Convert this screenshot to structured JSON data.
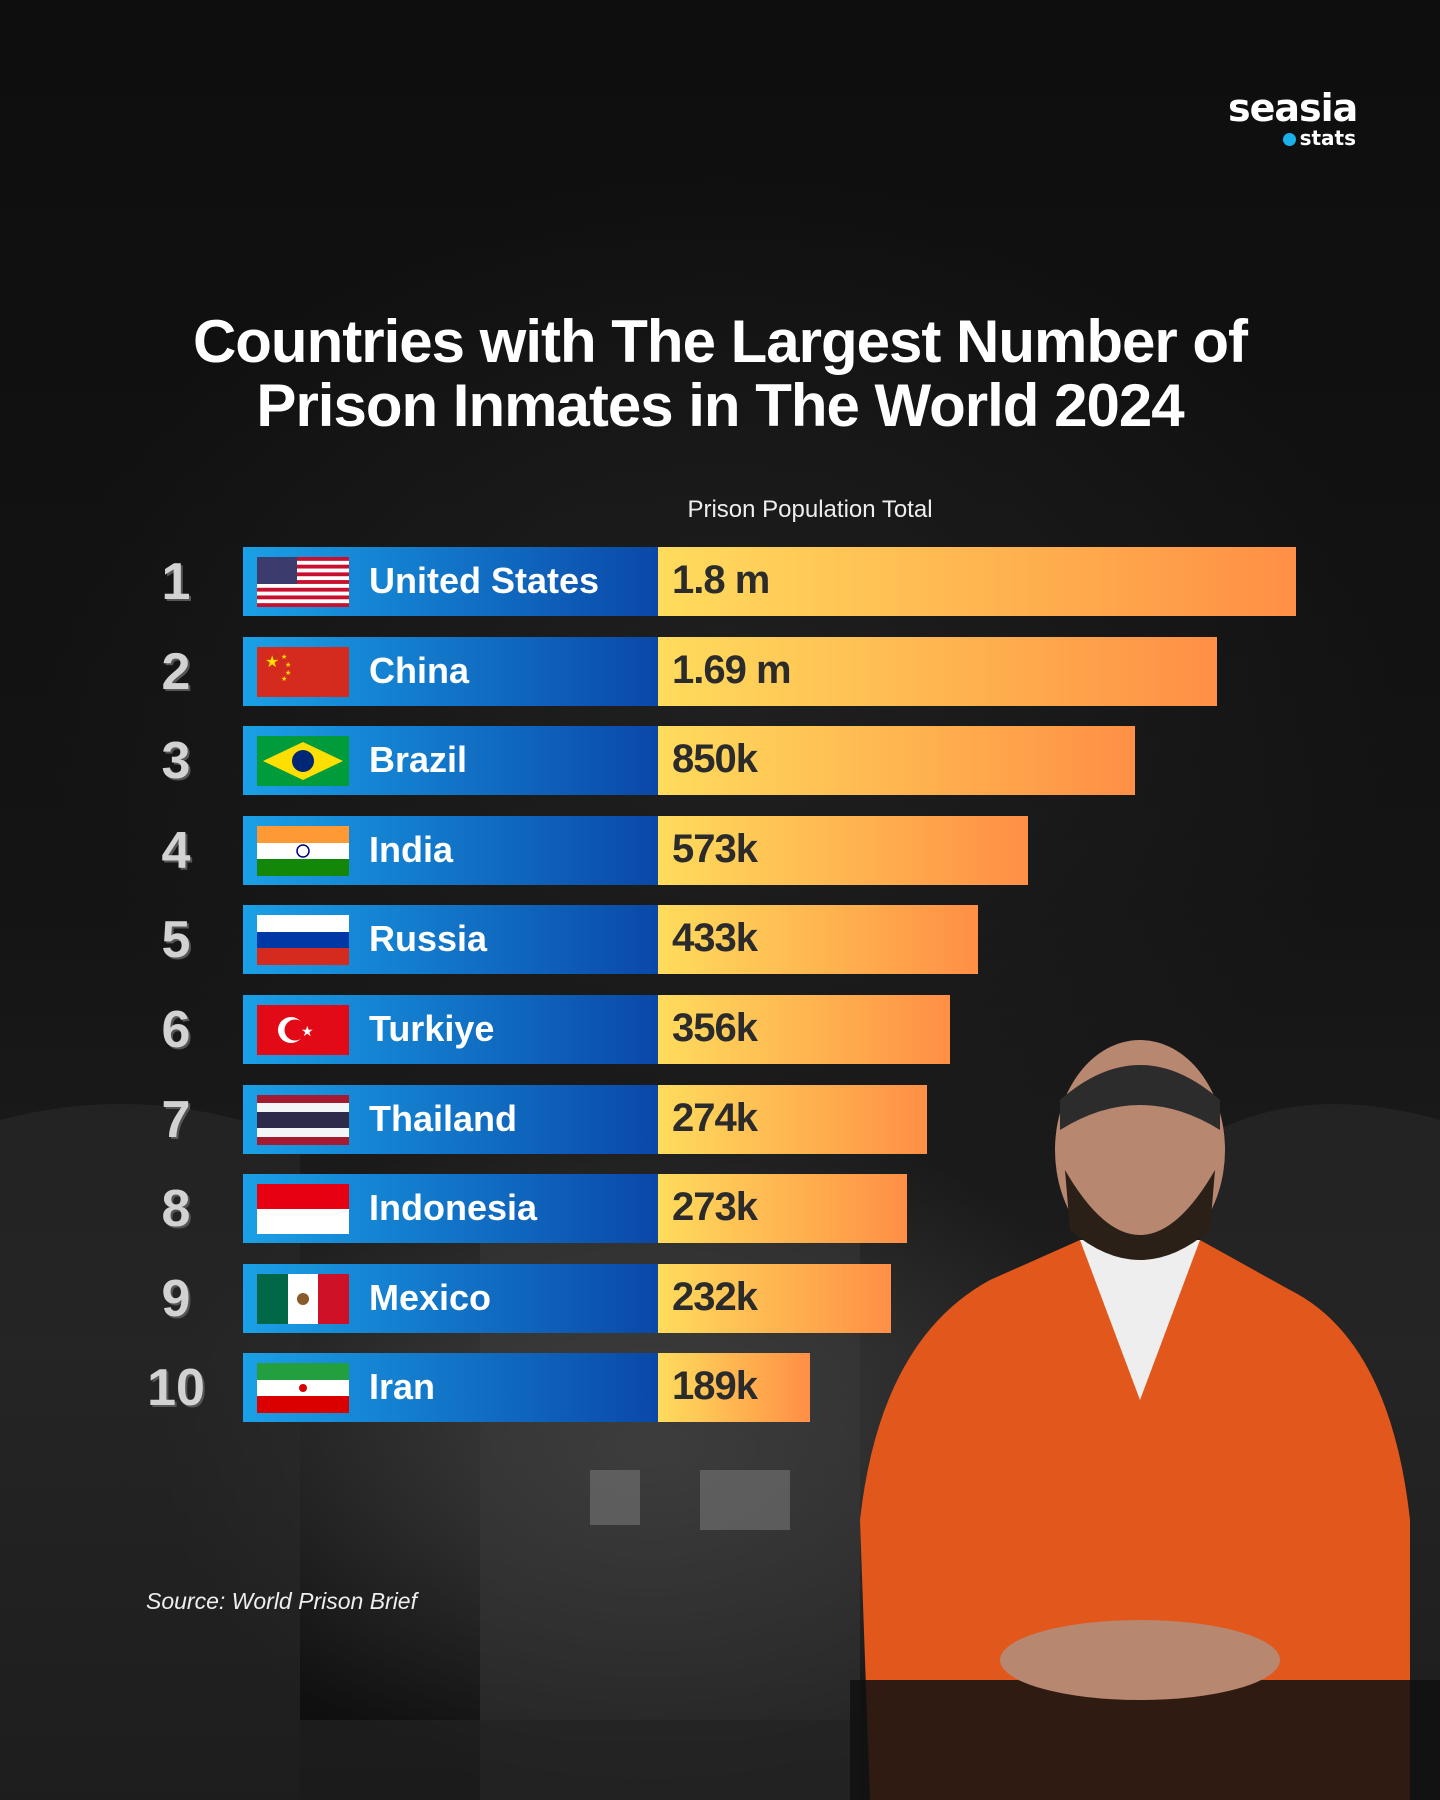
{
  "logo": {
    "brand": "seasia",
    "sub": "stats"
  },
  "title_lines": [
    "Countries with The Largest Number of",
    "Prison Inmates in The World 2024"
  ],
  "chart_data": {
    "type": "bar",
    "orientation": "horizontal",
    "title": "Countries with The Largest Number of Prison Inmates in The World 2024",
    "value_label": "Prison Population Total",
    "categories": [
      "United States",
      "China",
      "Brazil",
      "India",
      "Russia",
      "Turkiye",
      "Thailand",
      "Indonesia",
      "Mexico",
      "Iran"
    ],
    "ranks": [
      "1",
      "2",
      "3",
      "4",
      "5",
      "6",
      "7",
      "8",
      "9",
      "10"
    ],
    "values": [
      1800000,
      1690000,
      850000,
      573000,
      433000,
      356000,
      274000,
      273000,
      232000,
      189000
    ],
    "value_labels": [
      "1.8 m",
      "1.69 m",
      "850k",
      "573k",
      "433k",
      "356k",
      "274k",
      "273k",
      "232k",
      "189k"
    ],
    "flags": [
      "us-flag",
      "china-flag",
      "brazil-flag",
      "india-flag",
      "russia-flag",
      "turkiye-flag",
      "thailand-flag",
      "indonesia-flag",
      "mexico-flag",
      "iran-flag"
    ],
    "colors": {
      "label_bar": [
        "#1aa0e6",
        "#0a48a8"
      ],
      "value_bar": [
        "#ffdc5c",
        "#ff8f45"
      ]
    }
  },
  "source": "Source: World Prison Brief"
}
